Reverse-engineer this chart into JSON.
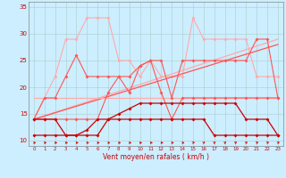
{
  "xlabel": "Vent moyen/en rafales ( km/h )",
  "x": [
    0,
    1,
    2,
    3,
    4,
    5,
    6,
    7,
    8,
    9,
    10,
    11,
    12,
    13,
    14,
    15,
    16,
    17,
    18,
    19,
    20,
    21,
    22,
    23
  ],
  "line_light_gust": [
    14,
    18,
    22,
    29,
    29,
    33,
    33,
    33,
    25,
    25,
    22,
    25,
    22,
    22,
    22,
    33,
    29,
    29,
    29,
    29,
    29,
    22,
    22,
    22
  ],
  "line_medium_gust": [
    14,
    18,
    18,
    22,
    26,
    22,
    22,
    22,
    22,
    22,
    24,
    25,
    25,
    18,
    25,
    25,
    25,
    25,
    25,
    25,
    25,
    29,
    29,
    18
  ],
  "line_medium_wind": [
    14,
    14,
    14,
    14,
    14,
    14,
    14,
    19,
    22,
    19,
    24,
    25,
    19,
    14,
    18,
    18,
    18,
    18,
    18,
    18,
    18,
    18,
    18,
    18
  ],
  "line_dark_wind": [
    11,
    11,
    11,
    11,
    11,
    11,
    11,
    14,
    14,
    14,
    14,
    14,
    14,
    14,
    14,
    14,
    14,
    11,
    11,
    11,
    11,
    11,
    11,
    11
  ],
  "line_dark_wind2": [
    14,
    14,
    14,
    11,
    11,
    12,
    14,
    14,
    15,
    16,
    17,
    17,
    17,
    17,
    17,
    17,
    17,
    17,
    17,
    17,
    14,
    14,
    14,
    11
  ],
  "trend1_x": [
    0,
    23
  ],
  "trend1_y": [
    14,
    29
  ],
  "trend2_x": [
    0,
    23
  ],
  "trend2_y": [
    14,
    28
  ],
  "trend3_x": [
    0,
    23
  ],
  "trend3_y": [
    18,
    18
  ],
  "arrows_x": [
    0,
    1,
    2,
    3,
    4,
    5,
    6,
    7,
    8,
    9,
    10,
    11,
    12,
    13,
    14,
    15,
    16,
    17,
    18,
    19,
    20,
    21,
    22,
    23
  ],
  "arrows_angle": [
    0,
    5,
    0,
    0,
    0,
    0,
    0,
    0,
    0,
    0,
    0,
    0,
    0,
    0,
    0,
    30,
    40,
    40,
    40,
    40,
    40,
    30,
    30,
    30
  ],
  "color_dark": "#cc0000",
  "color_medium": "#ff5555",
  "color_light": "#ffaaaa",
  "color_trend1": "#ffaaaa",
  "color_trend2": "#ff8888",
  "color_trend3": "#ffcccc",
  "background": "#cceeff",
  "grid_color": "#aacccc",
  "ylim": [
    9,
    36
  ],
  "yticks": [
    10,
    15,
    20,
    25,
    30,
    35
  ],
  "xlim": [
    -0.5,
    23.5
  ]
}
